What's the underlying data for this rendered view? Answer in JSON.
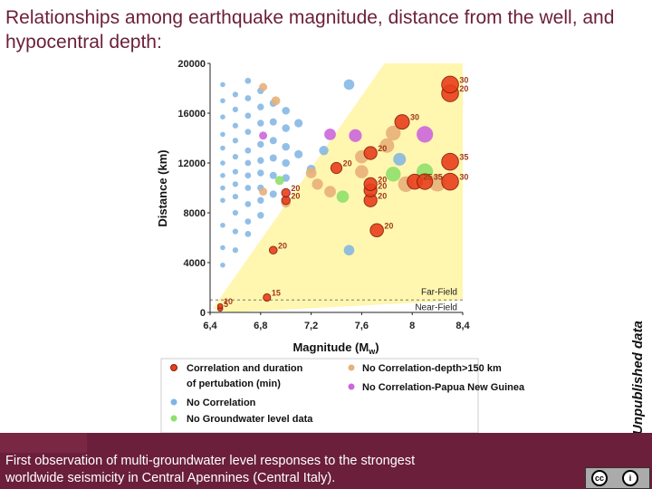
{
  "title": "Relationships among earthquake magnitude, distance from the well, and hypocentral depth:",
  "side_note": "Unpublished data",
  "footer": {
    "text_line1": "First observation of multi-groundwater level responses to the strongest",
    "text_line2": "worldwide seismicity in Central Apennines (Central Italy).",
    "license_icons": [
      "cc-icon",
      "attribution-icon"
    ]
  },
  "colors": {
    "title": "#6b1f3a",
    "footer": "#6b1f3a",
    "correlation": "#e8401c",
    "no_correlation": "#7fb4e3",
    "no_groundwater": "#8fe06a",
    "deep": "#e8b07a",
    "papua": "#cc66dd",
    "far_field_zone": "#fff6b0"
  },
  "chart_data": {
    "type": "scatter",
    "xlabel": "Magnitude (M",
    "xlabel_sub": "w",
    "xlabel_end": ")",
    "ylabel": "Distance (km)",
    "xlim": [
      6.4,
      8.4
    ],
    "ylim": [
      0,
      20000
    ],
    "x_ticks": [
      "6,4",
      "6,8",
      "7,2",
      "7,6",
      "8",
      "8,4"
    ],
    "y_ticks": [
      "0",
      "4000",
      "8000",
      "12000",
      "16000",
      "20000"
    ],
    "zone_labels": {
      "far": "Far-Field",
      "near": "Near-Field"
    },
    "near_field_limit": 1000,
    "legend": [
      {
        "text": "Correlation and duration",
        "text2": "of pertubation (min)",
        "color": "#e8401c"
      },
      {
        "text": "No Correlation",
        "color": "#7fb4e3"
      },
      {
        "text": "No Groundwater level data",
        "color": "#8fe06a"
      },
      {
        "text": "No Correlation-depth>150 km",
        "color": "#e8b07a"
      },
      {
        "text": "No Correlation-Papua New Guinea",
        "color": "#cc66dd"
      }
    ],
    "series": [
      {
        "name": "Correlation and duration of pertubation (min)",
        "key": "correlation",
        "points": [
          {
            "x": 6.48,
            "y": 300,
            "label": "5"
          },
          {
            "x": 6.48,
            "y": 500,
            "label": "10"
          },
          {
            "x": 6.85,
            "y": 1200,
            "label": "15"
          },
          {
            "x": 6.9,
            "y": 5000,
            "label": "20"
          },
          {
            "x": 7.0,
            "y": 9000,
            "label": "20"
          },
          {
            "x": 7.0,
            "y": 9600,
            "label": "20"
          },
          {
            "x": 7.4,
            "y": 11600,
            "label": "20"
          },
          {
            "x": 7.67,
            "y": 9000,
            "label": "20"
          },
          {
            "x": 7.67,
            "y": 9800,
            "label": "20"
          },
          {
            "x": 7.67,
            "y": 10300,
            "label": "20"
          },
          {
            "x": 7.67,
            "y": 12800,
            "label": "20"
          },
          {
            "x": 7.72,
            "y": 6600,
            "label": "20"
          },
          {
            "x": 7.92,
            "y": 15300,
            "label": "30"
          },
          {
            "x": 8.02,
            "y": 10500,
            "label": "25"
          },
          {
            "x": 8.1,
            "y": 10500,
            "label": "35"
          },
          {
            "x": 8.3,
            "y": 10500,
            "label": "30"
          },
          {
            "x": 8.3,
            "y": 12100,
            "label": "35"
          },
          {
            "x": 8.3,
            "y": 17600,
            "label": "20"
          },
          {
            "x": 8.3,
            "y": 18300,
            "label": "30"
          }
        ]
      },
      {
        "name": "No Correlation",
        "key": "no_correlation",
        "points": [
          {
            "x": 6.5,
            "y": 18300
          },
          {
            "x": 6.5,
            "y": 17000
          },
          {
            "x": 6.5,
            "y": 15700
          },
          {
            "x": 6.5,
            "y": 14300
          },
          {
            "x": 6.5,
            "y": 13200
          },
          {
            "x": 6.5,
            "y": 12000
          },
          {
            "x": 6.5,
            "y": 11000
          },
          {
            "x": 6.5,
            "y": 10000
          },
          {
            "x": 6.5,
            "y": 9000
          },
          {
            "x": 6.5,
            "y": 7000
          },
          {
            "x": 6.5,
            "y": 5200
          },
          {
            "x": 6.5,
            "y": 3800
          },
          {
            "x": 6.6,
            "y": 17500
          },
          {
            "x": 6.6,
            "y": 16300
          },
          {
            "x": 6.6,
            "y": 15000
          },
          {
            "x": 6.6,
            "y": 13800
          },
          {
            "x": 6.6,
            "y": 12500
          },
          {
            "x": 6.6,
            "y": 11300
          },
          {
            "x": 6.6,
            "y": 10300
          },
          {
            "x": 6.6,
            "y": 9300
          },
          {
            "x": 6.6,
            "y": 8000
          },
          {
            "x": 6.6,
            "y": 6500
          },
          {
            "x": 6.6,
            "y": 5000
          },
          {
            "x": 6.7,
            "y": 18600
          },
          {
            "x": 6.7,
            "y": 17200
          },
          {
            "x": 6.7,
            "y": 15800
          },
          {
            "x": 6.7,
            "y": 14500
          },
          {
            "x": 6.7,
            "y": 13000
          },
          {
            "x": 6.7,
            "y": 12000
          },
          {
            "x": 6.7,
            "y": 11000
          },
          {
            "x": 6.7,
            "y": 10000
          },
          {
            "x": 6.7,
            "y": 8700
          },
          {
            "x": 6.7,
            "y": 7300
          },
          {
            "x": 6.7,
            "y": 6300
          },
          {
            "x": 6.8,
            "y": 17800
          },
          {
            "x": 6.8,
            "y": 16500
          },
          {
            "x": 6.8,
            "y": 15200
          },
          {
            "x": 6.8,
            "y": 13500
          },
          {
            "x": 6.8,
            "y": 12200
          },
          {
            "x": 6.8,
            "y": 11200
          },
          {
            "x": 6.8,
            "y": 10000
          },
          {
            "x": 6.8,
            "y": 9000
          },
          {
            "x": 6.8,
            "y": 7800
          },
          {
            "x": 6.9,
            "y": 16800
          },
          {
            "x": 6.9,
            "y": 15300
          },
          {
            "x": 6.9,
            "y": 13800
          },
          {
            "x": 6.9,
            "y": 12400
          },
          {
            "x": 6.9,
            "y": 11000
          },
          {
            "x": 6.9,
            "y": 9500
          },
          {
            "x": 7.0,
            "y": 16200
          },
          {
            "x": 7.0,
            "y": 14800
          },
          {
            "x": 7.0,
            "y": 13300
          },
          {
            "x": 7.0,
            "y": 12000
          },
          {
            "x": 7.0,
            "y": 10800
          },
          {
            "x": 7.1,
            "y": 15200
          },
          {
            "x": 7.1,
            "y": 12700
          },
          {
            "x": 7.2,
            "y": 11500
          },
          {
            "x": 7.3,
            "y": 13000
          },
          {
            "x": 7.5,
            "y": 18300
          },
          {
            "x": 7.5,
            "y": 5000
          },
          {
            "x": 7.9,
            "y": 12300
          }
        ]
      },
      {
        "name": "No Groundwater level data",
        "key": "no_groundwater",
        "points": [
          {
            "x": 6.95,
            "y": 10600
          },
          {
            "x": 7.45,
            "y": 9300
          },
          {
            "x": 7.85,
            "y": 11100
          },
          {
            "x": 8.1,
            "y": 11300
          }
        ]
      },
      {
        "name": "No Correlation-depth>150 km",
        "key": "deep",
        "points": [
          {
            "x": 6.82,
            "y": 18100
          },
          {
            "x": 6.82,
            "y": 9700
          },
          {
            "x": 6.92,
            "y": 17000
          },
          {
            "x": 7.0,
            "y": 8800
          },
          {
            "x": 7.2,
            "y": 11200
          },
          {
            "x": 7.25,
            "y": 10300
          },
          {
            "x": 7.35,
            "y": 9700
          },
          {
            "x": 7.6,
            "y": 12500
          },
          {
            "x": 7.6,
            "y": 11300
          },
          {
            "x": 7.8,
            "y": 13400
          },
          {
            "x": 7.85,
            "y": 14400
          },
          {
            "x": 7.95,
            "y": 10300
          },
          {
            "x": 8.2,
            "y": 10400
          }
        ]
      },
      {
        "name": "No Correlation-Papua New Guinea",
        "key": "papua",
        "points": [
          {
            "x": 6.82,
            "y": 14200
          },
          {
            "x": 7.35,
            "y": 14300
          },
          {
            "x": 7.55,
            "y": 14200
          },
          {
            "x": 8.1,
            "y": 14300
          }
        ]
      }
    ]
  }
}
